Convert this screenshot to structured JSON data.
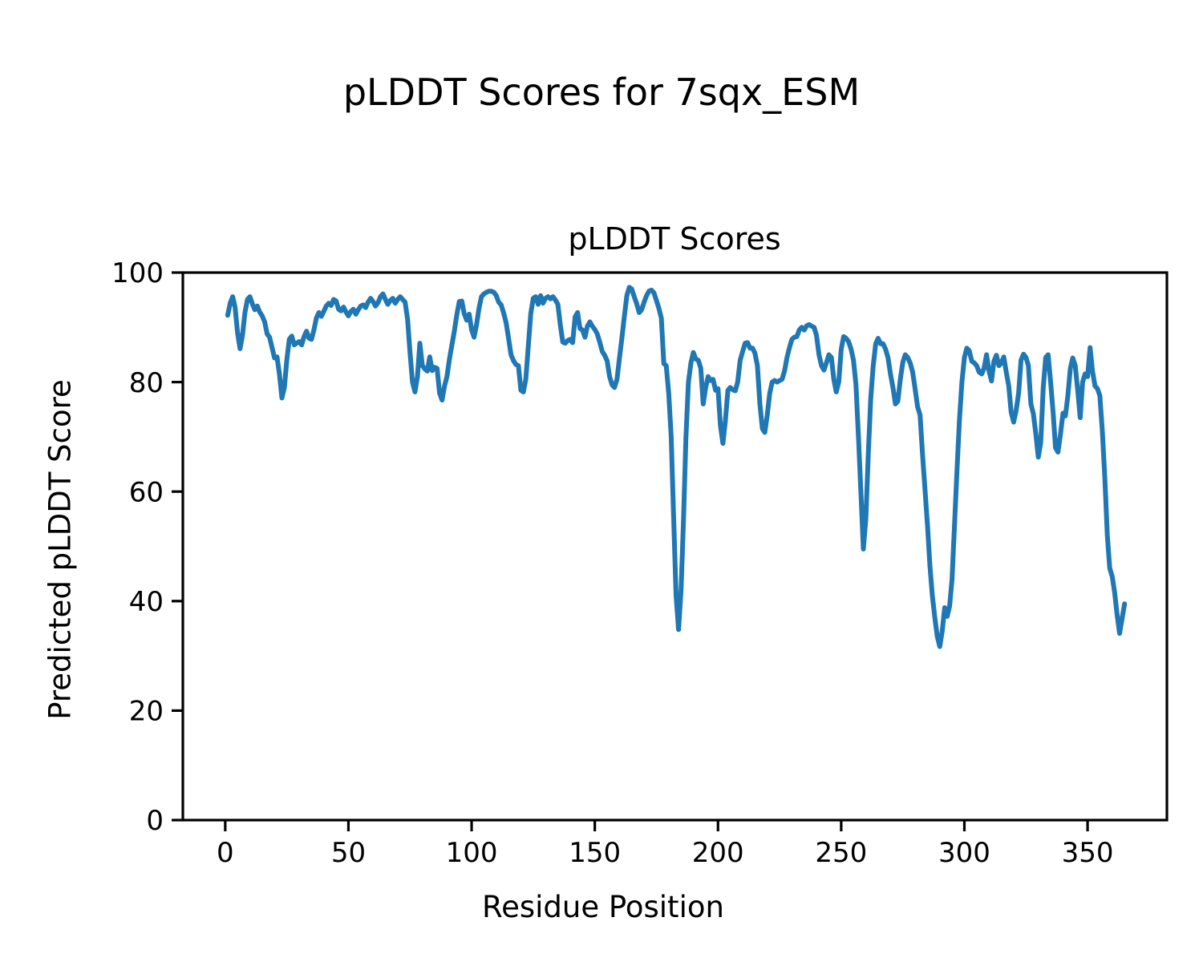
{
  "chart_data": {
    "type": "line",
    "suptitle": "pLDDT Scores for 7sqx_ESM",
    "title": "pLDDT Scores",
    "xlabel": "Residue Position",
    "ylabel": "Predicted pLDDT Score",
    "x_description": "residue positions; implicit integer x starting at x_start for each value",
    "x_start": 1,
    "values": [
      92.2,
      94.4,
      95.6,
      93.7,
      89.0,
      86.1,
      88.5,
      92.7,
      95.1,
      95.6,
      94.3,
      93.2,
      93.9,
      92.8,
      92.1,
      91.0,
      88.8,
      88.2,
      86.3,
      84.4,
      84.6,
      81.5,
      77.1,
      79.0,
      84.0,
      87.8,
      88.4,
      86.8,
      87.1,
      87.4,
      86.8,
      88.3,
      89.3,
      88.0,
      87.8,
      89.5,
      91.7,
      92.7,
      92.0,
      92.9,
      93.9,
      94.4,
      94.0,
      95.1,
      94.8,
      93.3,
      93.0,
      93.7,
      92.8,
      92.1,
      92.9,
      93.3,
      92.4,
      93.2,
      93.9,
      94.1,
      93.6,
      94.6,
      95.3,
      94.7,
      93.9,
      94.5,
      95.6,
      96.1,
      95.1,
      94.2,
      94.9,
      95.3,
      94.4,
      95.1,
      95.6,
      95.1,
      94.6,
      91.5,
      85.5,
      80.0,
      78.2,
      81.0,
      87.1,
      83.0,
      82.4,
      82.0,
      84.6,
      82.1,
      82.7,
      82.5,
      78.0,
      76.7,
      79.3,
      81.0,
      84.2,
      86.8,
      89.3,
      92.3,
      94.7,
      94.8,
      92.5,
      91.3,
      92.4,
      89.5,
      88.2,
      90.5,
      93.5,
      95.6,
      96.1,
      96.4,
      96.6,
      96.6,
      96.4,
      95.8,
      94.6,
      94.1,
      92.6,
      90.8,
      88.0,
      85.0,
      83.9,
      83.2,
      83.0,
      78.5,
      78.2,
      80.5,
      86.5,
      92.5,
      95.3,
      95.6,
      94.2,
      95.8,
      94.4,
      95.3,
      95.6,
      95.2,
      95.6,
      95.0,
      94.2,
      90.5,
      87.3,
      87.1,
      87.6,
      87.8,
      87.2,
      91.9,
      92.7,
      89.8,
      89.5,
      88.2,
      90.2,
      91.0,
      90.2,
      89.6,
      88.8,
      87.3,
      85.6,
      84.9,
      83.9,
      81.0,
      79.5,
      79.0,
      80.5,
      84.4,
      88.0,
      92.0,
      95.8,
      97.3,
      97.0,
      95.6,
      94.3,
      92.7,
      93.2,
      94.6,
      95.8,
      96.6,
      96.8,
      96.3,
      94.9,
      93.5,
      91.7,
      83.4,
      83.0,
      78.0,
      70.0,
      55.0,
      41.0,
      34.8,
      42.0,
      55.0,
      70.0,
      80.0,
      83.5,
      85.4,
      84.2,
      84.0,
      82.5,
      76.0,
      79.0,
      81.0,
      80.3,
      80.5,
      78.5,
      78.8,
      72.0,
      68.8,
      73.0,
      78.5,
      79.0,
      78.6,
      78.4,
      80.0,
      84.0,
      85.6,
      87.1,
      87.2,
      86.2,
      86.2,
      85.3,
      83.0,
      76.0,
      71.5,
      70.8,
      74.0,
      78.0,
      80.0,
      80.3,
      80.0,
      80.3,
      80.5,
      82.0,
      84.5,
      86.3,
      87.8,
      88.2,
      88.3,
      89.5,
      90.0,
      89.5,
      90.3,
      90.5,
      90.2,
      90.0,
      88.5,
      85.0,
      83.0,
      82.2,
      83.5,
      85.0,
      84.5,
      80.5,
      78.2,
      80.0,
      86.0,
      88.3,
      88.0,
      87.4,
      86.0,
      84.0,
      79.5,
      70.0,
      60.0,
      49.5,
      55.0,
      67.0,
      77.0,
      83.0,
      87.0,
      88.0,
      87.0,
      87.0,
      86.0,
      84.5,
      81.5,
      79.0,
      76.0,
      76.5,
      80.5,
      83.6,
      85.0,
      84.5,
      83.5,
      81.8,
      78.8,
      75.5,
      74.0,
      67.0,
      60.5,
      54.0,
      46.5,
      41.0,
      37.0,
      33.5,
      31.7,
      34.5,
      38.8,
      37.2,
      39.0,
      44.0,
      54.0,
      64.0,
      73.0,
      80.0,
      84.5,
      86.2,
      85.7,
      83.8,
      83.5,
      83.0,
      81.8,
      81.5,
      82.5,
      85.0,
      82.0,
      80.2,
      83.8,
      84.9,
      83.0,
      83.5,
      84.6,
      81.8,
      79.3,
      74.5,
      72.7,
      74.8,
      78.0,
      84.0,
      85.1,
      84.5,
      83.0,
      76.0,
      74.2,
      70.5,
      66.3,
      69.0,
      79.0,
      84.5,
      85.0,
      80.0,
      74.5,
      68.0,
      67.2,
      70.5,
      74.3,
      73.8,
      77.5,
      82.5,
      84.4,
      83.0,
      78.5,
      73.5,
      80.0,
      81.5,
      81.0,
      86.3,
      82.0,
      79.3,
      78.8,
      77.5,
      71.0,
      62.5,
      52.0,
      46.0,
      44.5,
      41.5,
      37.5,
      34.1,
      36.8,
      39.5
    ],
    "xlim": [
      -17.2,
      382.2
    ],
    "ylim": [
      0,
      100
    ],
    "x_ticks": [
      0,
      50,
      100,
      150,
      200,
      250,
      300,
      350
    ],
    "y_ticks": [
      0,
      20,
      40,
      60,
      80,
      100
    ],
    "line_color": "#1f77b4",
    "axis_color": "#000000",
    "grid": false,
    "legend": null
  }
}
